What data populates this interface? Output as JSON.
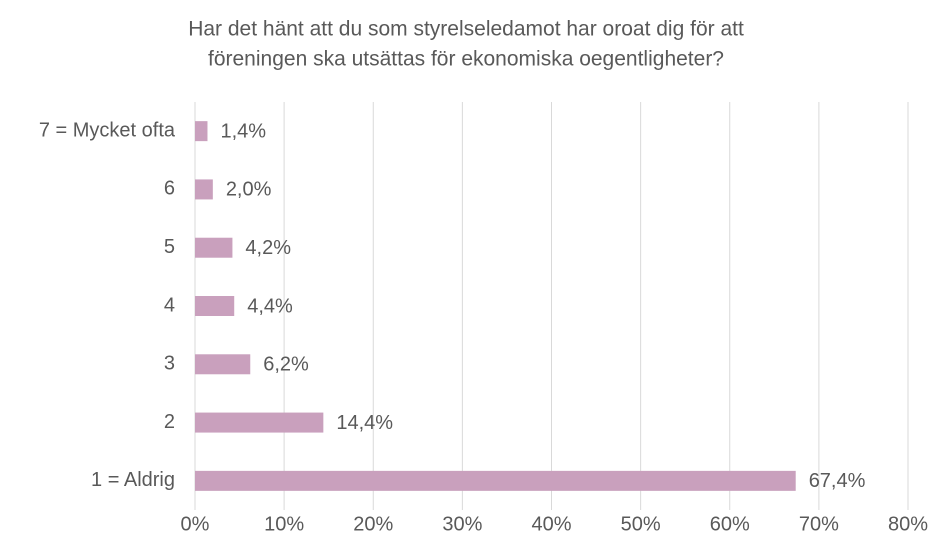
{
  "chart_data": {
    "type": "bar",
    "orientation": "horizontal",
    "title": [
      "Har det hänt att du som styrelseledamot har oroat dig för att",
      "föreningen ska utsättas för ekonomiska oegentligheter?"
    ],
    "categories": [
      "7 = Mycket ofta",
      "6",
      "5",
      "4",
      "3",
      "2",
      "1 = Aldrig"
    ],
    "values": [
      1.4,
      2.0,
      4.2,
      4.4,
      6.2,
      14.4,
      67.4
    ],
    "value_labels": [
      "1,4%",
      "2,0%",
      "4,2%",
      "4,4%",
      "6,2%",
      "14,4%",
      "67,4%"
    ],
    "color": "#c9a0bd",
    "xlim": [
      0,
      80
    ],
    "xticks": [
      {
        "value": 0,
        "label": "0%"
      },
      {
        "value": 10,
        "label": "10%"
      },
      {
        "value": 20,
        "label": "20%"
      },
      {
        "value": 30,
        "label": "30%"
      },
      {
        "value": 40,
        "label": "40%"
      },
      {
        "value": 50,
        "label": "50%"
      },
      {
        "value": 60,
        "label": "60%"
      },
      {
        "value": 70,
        "label": "70%"
      },
      {
        "value": 80,
        "label": "80%"
      }
    ],
    "grid": true
  }
}
